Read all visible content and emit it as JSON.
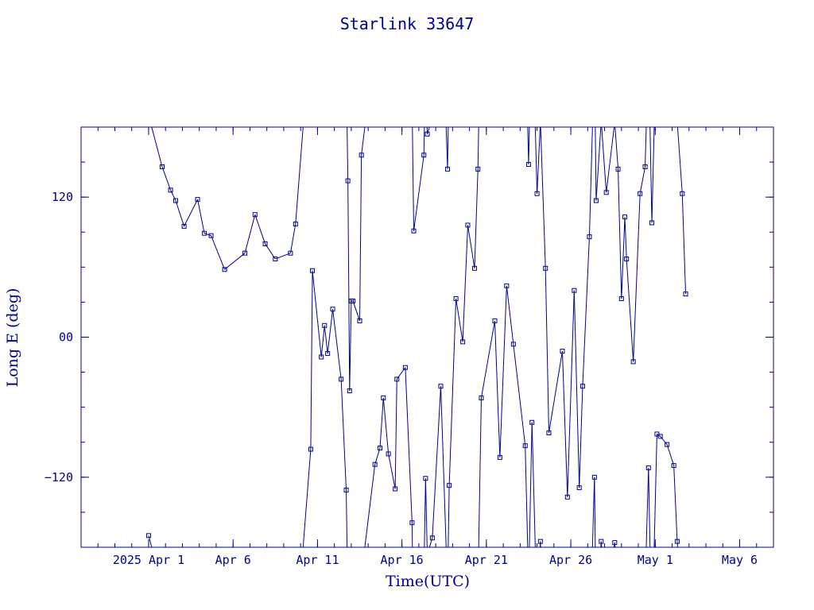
{
  "chart_data": {
    "type": "scatter",
    "title": "Starlink 33647",
    "xlabel": "Time(UTC)",
    "ylabel": "Long E (deg)",
    "x_range": [
      "2025-03-27T00:00:00Z",
      "2025-05-07T00:00:00Z"
    ],
    "ylim": [
      -180,
      180
    ],
    "x_ticks": [
      {
        "x": "2025-03-31T00:00:00Z",
        "label": "2025 Apr  1"
      },
      {
        "x": "2025-04-05T00:00:00Z",
        "label": "Apr  6"
      },
      {
        "x": "2025-04-10T00:00:00Z",
        "label": "Apr 11"
      },
      {
        "x": "2025-04-15T00:00:00Z",
        "label": "Apr 16"
      },
      {
        "x": "2025-04-20T00:00:00Z",
        "label": "Apr 21"
      },
      {
        "x": "2025-04-25T00:00:00Z",
        "label": "Apr 26"
      },
      {
        "x": "2025-04-30T00:00:00Z",
        "label": "May  1"
      },
      {
        "x": "2025-05-05T00:00:00Z",
        "label": "May  6"
      }
    ],
    "y_ticks": [
      {
        "y": 120,
        "label": "120"
      },
      {
        "y": 0,
        "label": "00"
      },
      {
        "y": -120,
        "label": "−120"
      }
    ],
    "color": "#00008b",
    "series": [
      {
        "points": [
          [
            "2025-03-31T00:00:00Z",
            -170
          ],
          [
            "2025-03-31T19:12:00Z",
            146
          ],
          [
            "2025-04-01T07:12:00Z",
            126
          ],
          [
            "2025-04-01T14:24:00Z",
            117
          ],
          [
            "2025-04-02T02:24:00Z",
            95
          ],
          [
            "2025-04-02T21:36:00Z",
            118
          ],
          [
            "2025-04-03T07:12:00Z",
            89
          ],
          [
            "2025-04-03T16:48:00Z",
            87
          ],
          [
            "2025-04-04T12:00:00Z",
            58
          ],
          [
            "2025-04-05T16:48:00Z",
            72
          ],
          [
            "2025-04-06T07:12:00Z",
            105
          ],
          [
            "2025-04-06T21:36:00Z",
            80
          ],
          [
            "2025-04-07T12:00:00Z",
            67
          ],
          [
            "2025-04-08T09:36:00Z",
            72
          ],
          [
            "2025-04-08T16:48:00Z",
            97
          ],
          [
            "2025-04-09T14:24:00Z",
            -96
          ],
          [
            "2025-04-09T16:48:00Z",
            57
          ],
          [
            "2025-04-10T05:24:00Z",
            -17
          ],
          [
            "2025-04-10T10:00:00Z",
            10
          ],
          [
            "2025-04-10T14:24:00Z",
            -14
          ],
          [
            "2025-04-10T21:36:00Z",
            24
          ],
          [
            "2025-04-11T09:36:00Z",
            -36
          ],
          [
            "2025-04-11T16:48:00Z",
            -131
          ],
          [
            "2025-04-11T19:12:00Z",
            134
          ],
          [
            "2025-04-11T21:36:00Z",
            -46
          ],
          [
            "2025-04-12T00:00:00Z",
            31
          ],
          [
            "2025-04-12T02:24:00Z",
            31
          ],
          [
            "2025-04-12T12:00:00Z",
            14
          ],
          [
            "2025-04-12T14:24:00Z",
            156
          ],
          [
            "2025-04-13T09:36:00Z",
            -109
          ],
          [
            "2025-04-13T16:48:00Z",
            -95
          ],
          [
            "2025-04-13T21:36:00Z",
            -52
          ],
          [
            "2025-04-14T04:48:00Z",
            -100
          ],
          [
            "2025-04-14T14:24:00Z",
            -130
          ],
          [
            "2025-04-14T16:48:00Z",
            -36
          ],
          [
            "2025-04-15T04:48:00Z",
            -26
          ],
          [
            "2025-04-15T14:24:00Z",
            -159
          ],
          [
            "2025-04-15T16:48:00Z",
            91
          ],
          [
            "2025-04-16T07:12:00Z",
            156
          ],
          [
            "2025-04-16T09:36:00Z",
            -121
          ],
          [
            "2025-04-16T12:00:00Z",
            174
          ],
          [
            "2025-04-16T19:12:00Z",
            -172
          ],
          [
            "2025-04-17T07:12:00Z",
            -42
          ],
          [
            "2025-04-17T16:48:00Z",
            144
          ],
          [
            "2025-04-17T19:12:00Z",
            -127
          ],
          [
            "2025-04-18T04:48:00Z",
            33
          ],
          [
            "2025-04-18T14:24:00Z",
            -4
          ],
          [
            "2025-04-18T21:36:00Z",
            96
          ],
          [
            "2025-04-19T07:12:00Z",
            59
          ],
          [
            "2025-04-19T12:00:00Z",
            144
          ],
          [
            "2025-04-19T16:48:00Z",
            -52
          ],
          [
            "2025-04-20T12:00:00Z",
            14
          ],
          [
            "2025-04-20T19:12:00Z",
            -103
          ],
          [
            "2025-04-21T04:48:00Z",
            44
          ],
          [
            "2025-04-21T14:24:00Z",
            -6
          ],
          [
            "2025-04-22T07:12:00Z",
            -93
          ],
          [
            "2025-04-22T12:00:00Z",
            148
          ],
          [
            "2025-04-22T16:48:00Z",
            -73
          ],
          [
            "2025-04-23T00:00:00Z",
            123
          ],
          [
            "2025-04-23T04:48:00Z",
            -175
          ],
          [
            "2025-04-23T12:00:00Z",
            59
          ],
          [
            "2025-04-23T16:48:00Z",
            -82
          ],
          [
            "2025-04-24T12:00:00Z",
            -12
          ],
          [
            "2025-04-24T19:12:00Z",
            -137
          ],
          [
            "2025-04-25T04:48:00Z",
            40
          ],
          [
            "2025-04-25T12:00:00Z",
            -129
          ],
          [
            "2025-04-25T16:48:00Z",
            -42
          ],
          [
            "2025-04-26T02:24:00Z",
            86
          ],
          [
            "2025-04-26T09:36:00Z",
            -120
          ],
          [
            "2025-04-26T12:00:00Z",
            117
          ],
          [
            "2025-04-26T19:12:00Z",
            -175
          ],
          [
            "2025-04-27T02:24:00Z",
            124
          ],
          [
            "2025-04-27T14:24:00Z",
            -176
          ],
          [
            "2025-04-27T19:12:00Z",
            144
          ],
          [
            "2025-04-28T00:00:00Z",
            33
          ],
          [
            "2025-04-28T04:48:00Z",
            103
          ],
          [
            "2025-04-28T07:12:00Z",
            67
          ],
          [
            "2025-04-28T16:48:00Z",
            -21
          ],
          [
            "2025-04-29T02:24:00Z",
            123
          ],
          [
            "2025-04-29T09:36:00Z",
            146
          ],
          [
            "2025-04-29T14:24:00Z",
            -112
          ],
          [
            "2025-04-29T19:12:00Z",
            98
          ],
          [
            "2025-04-30T02:24:00Z",
            -83
          ],
          [
            "2025-04-30T07:12:00Z",
            -85
          ],
          [
            "2025-04-30T16:48:00Z",
            -92
          ],
          [
            "2025-05-01T02:24:00Z",
            -110
          ],
          [
            "2025-05-01T07:12:00Z",
            -175
          ],
          [
            "2025-05-01T14:24:00Z",
            123
          ],
          [
            "2025-05-01T19:12:00Z",
            37
          ]
        ]
      }
    ]
  }
}
